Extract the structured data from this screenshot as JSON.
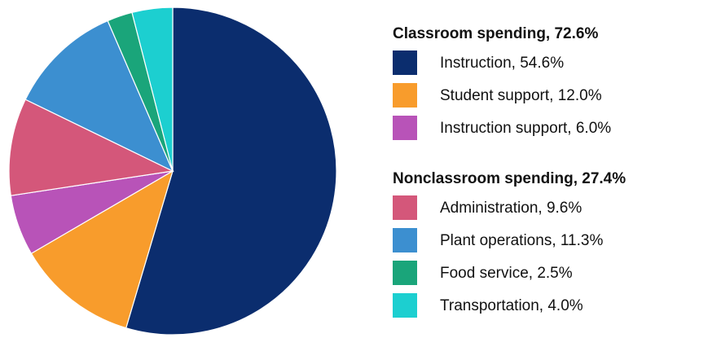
{
  "chart_data": {
    "type": "pie",
    "groups": [
      {
        "title": "Classroom spending, 72.6%",
        "labels": [
          "Instruction, 54.6%",
          "Student support, 12.0%",
          "Instruction support, 6.0%"
        ],
        "values": [
          54.6,
          12.0,
          6.0
        ],
        "colors": [
          "#0b2d6e",
          "#f89c2c",
          "#b853b8"
        ]
      },
      {
        "title": "Nonclassroom spending, 27.4%",
        "labels": [
          "Administration, 9.6%",
          "Plant operations, 11.3%",
          "Food service, 2.5%",
          "Transportation, 4.0%"
        ],
        "values": [
          9.6,
          11.3,
          2.5,
          4.0
        ],
        "colors": [
          "#d4577a",
          "#3c8fd0",
          "#1aa57a",
          "#1ccfd0"
        ]
      }
    ]
  }
}
